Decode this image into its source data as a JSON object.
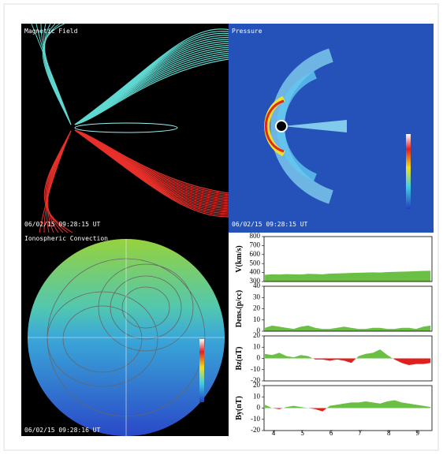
{
  "panels": [
    {
      "title": "Magnetic Field",
      "timestamp": "06/02/15 09:28:15 UT"
    },
    {
      "title": "Pressure",
      "timestamp": "06/02/15 09:28:15 UT"
    },
    {
      "title": "Ionospheric Convection",
      "timestamp": "06/02/15 09:28:16 UT"
    }
  ],
  "chart_data": [
    {
      "type": "area",
      "ylabel": "V(km/s)",
      "color": "#6cbf45",
      "negative_color": "#e0201c",
      "x": [
        3.7,
        3.95,
        4.2,
        4.45,
        4.7,
        4.95,
        5.2,
        5.45,
        5.7,
        5.95,
        6.2,
        6.45,
        6.7,
        6.95,
        7.2,
        7.45,
        7.7,
        7.95,
        8.2,
        8.45,
        8.7,
        8.95,
        9.2,
        9.45
      ],
      "values": [
        375,
        380,
        378,
        382,
        380,
        378,
        385,
        383,
        380,
        388,
        390,
        392,
        395,
        398,
        400,
        402,
        400,
        405,
        408,
        410,
        412,
        415,
        418,
        420
      ],
      "xlim": [
        3.67,
        9.5
      ],
      "ylim": [
        300,
        800
      ],
      "yticks": [
        300,
        400,
        500,
        600,
        700,
        800
      ]
    },
    {
      "type": "area",
      "ylabel": "Dens.(p/cc)",
      "color": "#6cbf45",
      "negative_color": "#e0201c",
      "x": [
        3.7,
        3.95,
        4.2,
        4.45,
        4.7,
        4.95,
        5.2,
        5.45,
        5.7,
        5.95,
        6.2,
        6.45,
        6.7,
        6.95,
        7.2,
        7.45,
        7.7,
        7.95,
        8.2,
        8.45,
        8.7,
        8.95,
        9.2,
        9.45
      ],
      "values": [
        3,
        5,
        4,
        3,
        2,
        4,
        5,
        3,
        2,
        2,
        3,
        4,
        3,
        2,
        2,
        3,
        3,
        2,
        2,
        3,
        3,
        2,
        4,
        5
      ],
      "xlim": [
        3.67,
        9.5
      ],
      "ylim": [
        0,
        40
      ],
      "yticks": [
        0,
        10,
        20,
        30,
        40
      ]
    },
    {
      "type": "area",
      "ylabel": "Bz(nT)",
      "color": "#6cbf45",
      "negative_color": "#e0201c",
      "x": [
        3.7,
        3.95,
        4.2,
        4.45,
        4.7,
        4.95,
        5.2,
        5.45,
        5.7,
        5.95,
        6.2,
        6.45,
        6.7,
        6.95,
        7.2,
        7.45,
        7.7,
        7.95,
        8.2,
        8.45,
        8.7,
        8.95,
        9.2,
        9.45
      ],
      "values": [
        4,
        3,
        5,
        2,
        1,
        3,
        2,
        -1,
        -1,
        -2,
        -1,
        -2,
        -4,
        2,
        4,
        5,
        8,
        3,
        -1,
        -4,
        -6,
        -5,
        -5,
        -4
      ],
      "xlim": [
        3.67,
        9.5
      ],
      "ylim": [
        -20,
        20
      ],
      "yticks": [
        -20,
        -10,
        0,
        10,
        20
      ]
    },
    {
      "type": "area",
      "ylabel": "By(nT)",
      "color": "#6cbf45",
      "negative_color": "#e0201c",
      "x": [
        3.7,
        3.95,
        4.2,
        4.45,
        4.7,
        4.95,
        5.2,
        5.45,
        5.7,
        5.95,
        6.2,
        6.45,
        6.7,
        6.95,
        7.2,
        7.45,
        7.7,
        7.95,
        8.2,
        8.45,
        8.7,
        8.95,
        9.2,
        9.45
      ],
      "values": [
        3,
        0,
        -1,
        1,
        2,
        1,
        0,
        -1,
        -3,
        2,
        3,
        4,
        5,
        5,
        6,
        5,
        4,
        6,
        7,
        5,
        4,
        3,
        2,
        1
      ],
      "xlim": [
        3.67,
        9.5
      ],
      "ylim": [
        -20,
        20
      ],
      "yticks": [
        -20,
        -10,
        0,
        10,
        20
      ],
      "xticks": [
        4,
        5,
        6,
        7,
        8,
        9
      ]
    }
  ]
}
